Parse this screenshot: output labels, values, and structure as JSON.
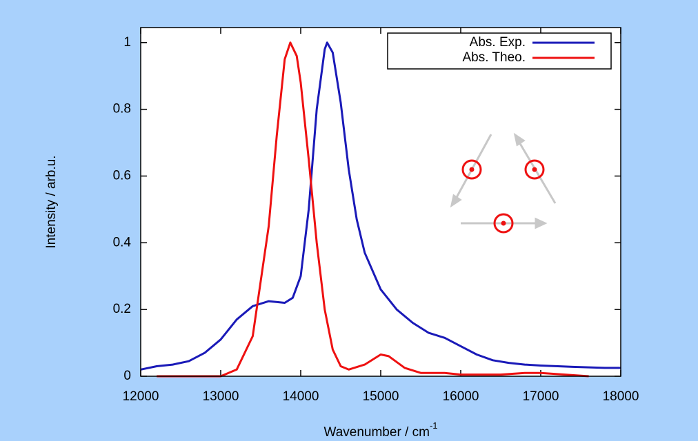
{
  "chart_data": {
    "type": "line",
    "xlabel": "Wavenumber / cm",
    "xlabel_superscript": "-1",
    "ylabel": "Intensity / arb.u.",
    "xlim": [
      12000,
      18000
    ],
    "xticks": [
      12000,
      13000,
      14000,
      15000,
      16000,
      17000,
      18000
    ],
    "ylim": [
      0,
      1.045
    ],
    "yticks": [
      0,
      0.2,
      0.4,
      0.6,
      0.8,
      1
    ],
    "legend": "upper right",
    "series": [
      {
        "name": "Abs. Exp.",
        "color": "#1a1ab8",
        "x": [
          12000,
          12200,
          12400,
          12600,
          12800,
          13000,
          13200,
          13400,
          13600,
          13800,
          13900,
          14000,
          14100,
          14200,
          14300,
          14330,
          14400,
          14500,
          14600,
          14700,
          14800,
          15000,
          15200,
          15400,
          15600,
          15800,
          16000,
          16200,
          16400,
          16600,
          16800,
          17000,
          17400,
          17800,
          18000
        ],
        "values": [
          0.02,
          0.03,
          0.035,
          0.045,
          0.07,
          0.11,
          0.17,
          0.21,
          0.225,
          0.22,
          0.235,
          0.3,
          0.5,
          0.8,
          0.98,
          1.0,
          0.97,
          0.82,
          0.62,
          0.47,
          0.37,
          0.26,
          0.2,
          0.16,
          0.13,
          0.115,
          0.09,
          0.065,
          0.048,
          0.04,
          0.035,
          0.032,
          0.028,
          0.025,
          0.025
        ]
      },
      {
        "name": "Abs. Theo.",
        "color": "#ee1111",
        "x": [
          12200,
          13000,
          13200,
          13400,
          13600,
          13700,
          13800,
          13870,
          13950,
          14000,
          14100,
          14200,
          14300,
          14400,
          14500,
          14600,
          14800,
          15000,
          15100,
          15300,
          15500,
          15800,
          16000,
          16500,
          16800,
          17000,
          17300,
          17600
        ],
        "values": [
          0,
          0,
          0.02,
          0.12,
          0.45,
          0.72,
          0.95,
          1.0,
          0.96,
          0.88,
          0.65,
          0.4,
          0.2,
          0.08,
          0.03,
          0.02,
          0.035,
          0.065,
          0.06,
          0.025,
          0.01,
          0.01,
          0.005,
          0.005,
          0.01,
          0.01,
          0.005,
          0
        ]
      }
    ]
  }
}
